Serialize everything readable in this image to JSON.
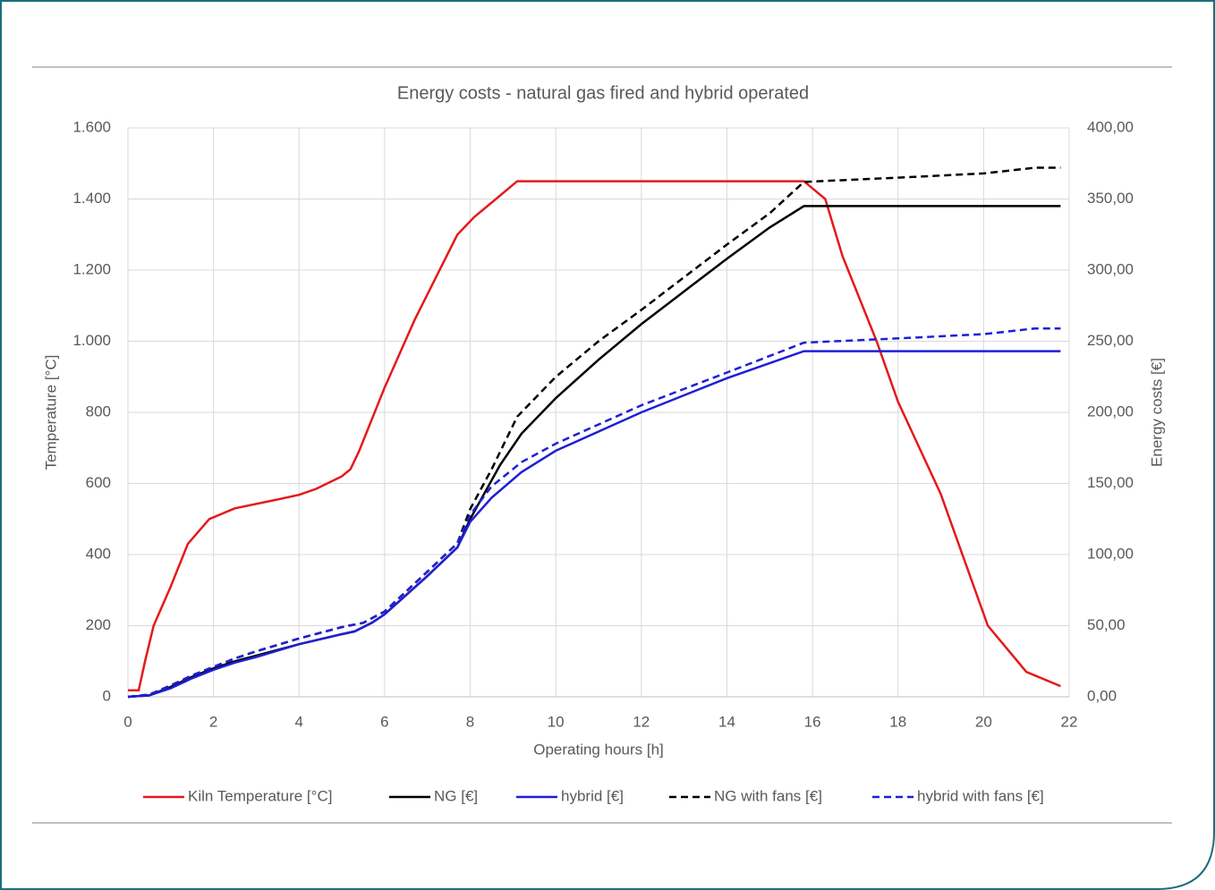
{
  "chart_data": {
    "type": "line",
    "title": "Energy costs - natural gas fired and hybrid operated",
    "x_label": "Operating hours [h]",
    "y_label": "Temperature [°C]",
    "y2_label": "Energy costs [€]",
    "xlim": [
      0,
      22
    ],
    "xticks": [
      0,
      2,
      4,
      6,
      8,
      10,
      12,
      14,
      16,
      18,
      20,
      22
    ],
    "ylim": [
      0,
      1600
    ],
    "yticks": [
      0,
      200,
      400,
      600,
      800,
      {
        "value": 1000,
        "label": "1.000"
      },
      {
        "value": 1200,
        "label": "1.200"
      },
      {
        "value": 1400,
        "label": "1.400"
      },
      {
        "value": 1600,
        "label": "1.600"
      }
    ],
    "y2lim": [
      0,
      400
    ],
    "y2ticks": [
      {
        "value": 0,
        "label": "0,00"
      },
      {
        "value": 50,
        "label": "50,00"
      },
      {
        "value": 100,
        "label": "100,00"
      },
      {
        "value": 150,
        "label": "150,00"
      },
      {
        "value": 200,
        "label": "200,00"
      },
      {
        "value": 250,
        "label": "250,00"
      },
      {
        "value": 300,
        "label": "300,00"
      },
      {
        "value": 350,
        "label": "350,00"
      },
      {
        "value": 400,
        "label": "400,00"
      }
    ],
    "grid": true,
    "legend": "bottom",
    "series": [
      {
        "name": "Kiln Temperature [°C]",
        "color": "#e31a1c",
        "dash": false,
        "x": [
          0,
          0.25,
          0.4,
          0.6,
          1.0,
          1.4,
          1.9,
          2.5,
          3.5,
          4.0,
          4.4,
          5.0,
          5.2,
          5.4,
          6.0,
          6.7,
          7.2,
          7.7,
          8.1,
          8.5,
          9.1,
          15.8,
          16.3,
          16.7,
          17.5,
          18.0,
          19.0,
          20.1,
          21.0,
          21.8
        ],
        "values": [
          18,
          18,
          100,
          200,
          310,
          430,
          500,
          530,
          555,
          568,
          585,
          620,
          640,
          690,
          870,
          1060,
          1180,
          1300,
          1350,
          1390,
          1450,
          1450,
          1400,
          1240,
          1000,
          830,
          570,
          200,
          70,
          30
        ]
      },
      {
        "name": "NG [€]",
        "color": "#000000",
        "dash": false,
        "axis": "y2",
        "x": [
          0,
          0.5,
          1.0,
          1.5,
          2,
          2.5,
          3,
          4,
          5,
          5.3,
          5.7,
          6,
          7,
          7.7,
          8,
          8.7,
          9.2,
          10,
          11,
          12,
          13,
          14,
          15,
          15.8,
          21.8
        ],
        "values": [
          0,
          1,
          7,
          14,
          20,
          25,
          29,
          37,
          44,
          46,
          52,
          58,
          85,
          105,
          125,
          163,
          185,
          210,
          237,
          262,
          285,
          308,
          330,
          345,
          345
        ]
      },
      {
        "name": "hybrid [€]",
        "color": "#1f1fd6",
        "dash": false,
        "axis": "y2",
        "x": [
          0,
          0.5,
          1,
          1.5,
          2,
          2.5,
          3,
          4,
          5,
          5.3,
          5.7,
          6,
          7,
          7.7,
          8,
          8.5,
          9.2,
          10,
          12,
          14,
          15.8,
          21.8
        ],
        "values": [
          0,
          1,
          6,
          13,
          19,
          24,
          28,
          37,
          44,
          46,
          52,
          58,
          85,
          105,
          123,
          140,
          158,
          173,
          200,
          224,
          243,
          243
        ]
      },
      {
        "name": "NG with fans [€]",
        "color": "#000000",
        "dash": true,
        "axis": "y2",
        "x": [
          0,
          0.5,
          1,
          1.5,
          2,
          2.5,
          3,
          4,
          5,
          5.5,
          6,
          7,
          7.7,
          8,
          8.5,
          9.1,
          10,
          11,
          12,
          13,
          14,
          15,
          15.8,
          18,
          20,
          21.2,
          21.8
        ],
        "values": [
          0,
          1.5,
          8,
          15,
          21,
          27,
          32,
          41,
          49,
          52,
          60,
          88,
          108,
          132,
          160,
          197,
          225,
          250,
          272,
          295,
          318,
          340,
          362,
          365,
          368,
          372,
          372
        ]
      },
      {
        "name": "hybrid with fans [€]",
        "color": "#1f1fd6",
        "dash": true,
        "axis": "y2",
        "x": [
          0,
          0.5,
          1,
          1.5,
          2,
          2.5,
          3,
          4,
          5,
          5.5,
          6,
          7,
          7.7,
          8,
          8.5,
          9.2,
          10,
          12,
          14,
          15.8,
          18,
          20,
          21.2,
          21.8
        ],
        "values": [
          0,
          1.5,
          8,
          15,
          21,
          27,
          32,
          41,
          49,
          52,
          60,
          88,
          108,
          128,
          148,
          165,
          178,
          205,
          228,
          249,
          252,
          255,
          259,
          259
        ]
      }
    ]
  }
}
